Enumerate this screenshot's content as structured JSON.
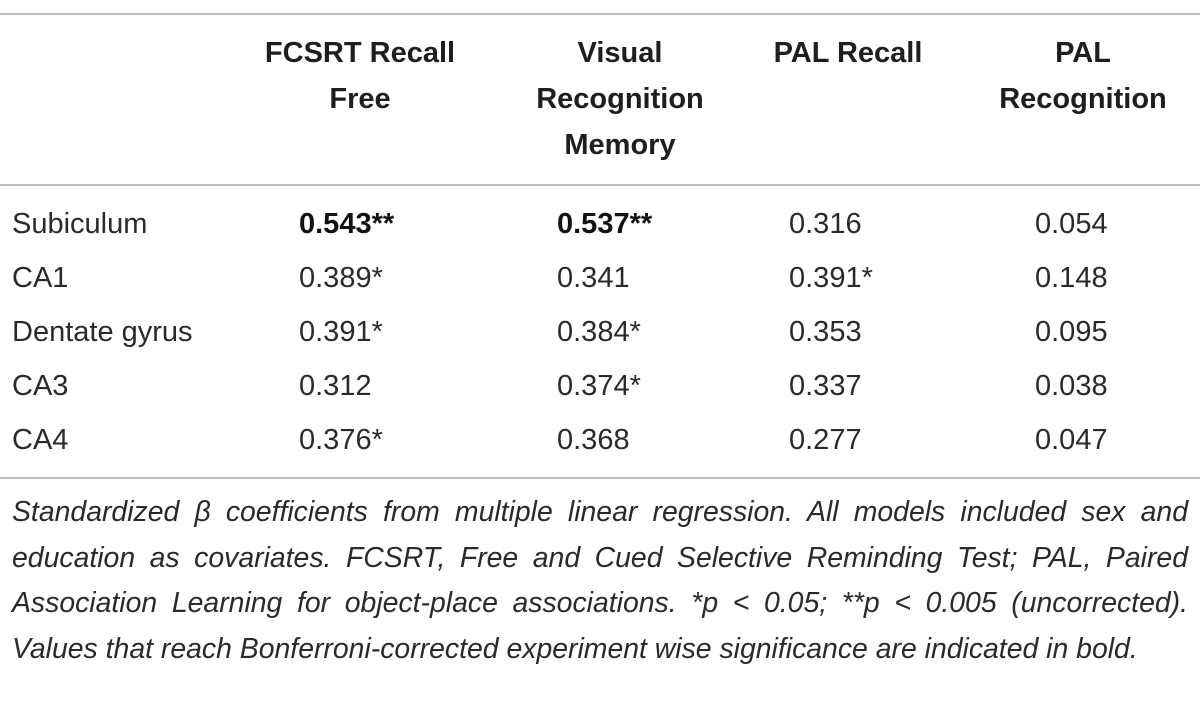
{
  "table": {
    "headers": [
      [
        "FCSRT Recall",
        "Free"
      ],
      [
        "Visual",
        "Recognition",
        "Memory"
      ],
      [
        "PAL Recall"
      ],
      [
        "PAL",
        "Recognition"
      ]
    ],
    "rows": [
      {
        "label": "Subiculum",
        "values": [
          "0.543**",
          "0.537**",
          "0.316",
          "0.054"
        ],
        "bold": [
          true,
          true,
          false,
          false
        ]
      },
      {
        "label": "CA1",
        "values": [
          "0.389*",
          "0.341",
          "0.391*",
          "0.148"
        ],
        "bold": [
          false,
          false,
          false,
          false
        ]
      },
      {
        "label": "Dentate gyrus",
        "values": [
          "0.391*",
          "0.384*",
          "0.353",
          "0.095"
        ],
        "bold": [
          false,
          false,
          false,
          false
        ]
      },
      {
        "label": "CA3",
        "values": [
          "0.312",
          "0.374*",
          "0.337",
          "0.038"
        ],
        "bold": [
          false,
          false,
          false,
          false
        ]
      },
      {
        "label": "CA4",
        "values": [
          "0.376*",
          "0.368",
          "0.277",
          "0.047"
        ],
        "bold": [
          false,
          false,
          false,
          false
        ]
      }
    ]
  },
  "footnote": "Standardized β coefficients from multiple linear regression. All models included sex and education as covariates. FCSRT, Free and Cued Selective Reminding Test; PAL, Paired Association Learning for object-place associations. *p < 0.05; **p < 0.005 (uncorrected). Values that reach Bonferroni-corrected experiment wise significance are indicated in bold."
}
